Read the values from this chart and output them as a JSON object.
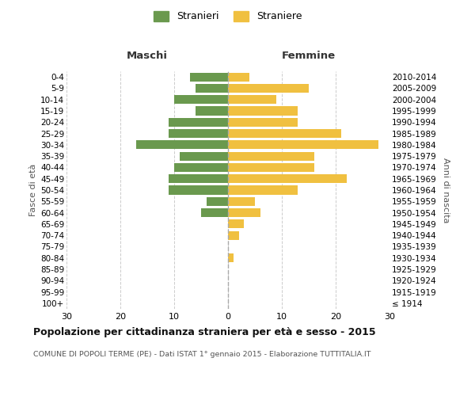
{
  "age_groups": [
    "100+",
    "95-99",
    "90-94",
    "85-89",
    "80-84",
    "75-79",
    "70-74",
    "65-69",
    "60-64",
    "55-59",
    "50-54",
    "45-49",
    "40-44",
    "35-39",
    "30-34",
    "25-29",
    "20-24",
    "15-19",
    "10-14",
    "5-9",
    "0-4"
  ],
  "birth_years": [
    "≤ 1914",
    "1915-1919",
    "1920-1924",
    "1925-1929",
    "1930-1934",
    "1935-1939",
    "1940-1944",
    "1945-1949",
    "1950-1954",
    "1955-1959",
    "1960-1964",
    "1965-1969",
    "1970-1974",
    "1975-1979",
    "1980-1984",
    "1985-1989",
    "1990-1994",
    "1995-1999",
    "2000-2004",
    "2005-2009",
    "2010-2014"
  ],
  "males": [
    0,
    0,
    0,
    0,
    0,
    0,
    0,
    0,
    5,
    4,
    11,
    11,
    10,
    9,
    17,
    11,
    11,
    6,
    10,
    6,
    7
  ],
  "females": [
    0,
    0,
    0,
    0,
    1,
    0,
    2,
    3,
    6,
    5,
    13,
    22,
    16,
    16,
    28,
    21,
    13,
    13,
    9,
    15,
    4
  ],
  "male_color": "#6a994e",
  "female_color": "#f0c040",
  "background_color": "#ffffff",
  "grid_color": "#cccccc",
  "title": "Popolazione per cittadinanza straniera per età e sesso - 2015",
  "subtitle": "COMUNE DI POPOLI TERME (PE) - Dati ISTAT 1° gennaio 2015 - Elaborazione TUTTITALIA.IT",
  "legend_males": "Stranieri",
  "legend_females": "Straniere",
  "xlim": 30,
  "header_left": "Maschi",
  "header_right": "Femmine",
  "ylabel_left": "Fasce di età",
  "ylabel_right": "Anni di nascita"
}
